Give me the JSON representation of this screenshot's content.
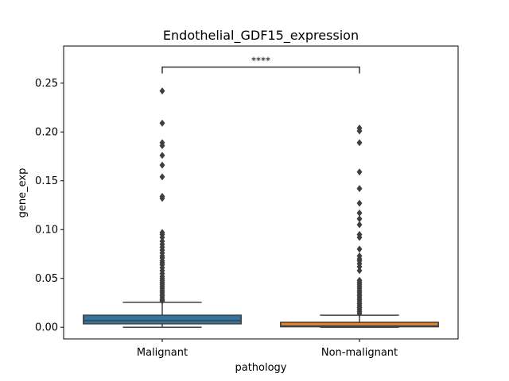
{
  "chart_data": {
    "type": "box",
    "title": "Endothelial_GDF15_expression",
    "xlabel": "pathology",
    "ylabel": "gene_exp",
    "categories": [
      "Malignant",
      "Non-malignant"
    ],
    "ylim": [
      -0.012,
      0.288
    ],
    "yticks": [
      0.0,
      0.05,
      0.1,
      0.15,
      0.2,
      0.25
    ],
    "ytick_labels": [
      "0.00",
      "0.05",
      "0.10",
      "0.15",
      "0.20",
      "0.25"
    ],
    "grid": false,
    "boxes": [
      {
        "name": "Malignant",
        "color": "#3274a1",
        "whisker_low": 0.0,
        "q1": 0.0035,
        "median": 0.0068,
        "q3": 0.0123,
        "whisker_high": 0.0255,
        "outliers": [
          0.242,
          0.209,
          0.189,
          0.186,
          0.176,
          0.166,
          0.154,
          0.134,
          0.132,
          0.097,
          0.095,
          0.092,
          0.088,
          0.085,
          0.082,
          0.079,
          0.076,
          0.073,
          0.071,
          0.068,
          0.066,
          0.064,
          0.061,
          0.058,
          0.055,
          0.052,
          0.05,
          0.048,
          0.046,
          0.044,
          0.042,
          0.04,
          0.038,
          0.036,
          0.034,
          0.032,
          0.03,
          0.028,
          0.027
        ]
      },
      {
        "name": "Non-malignant",
        "color": "#e1812c",
        "whisker_low": 0.0,
        "q1": 0.0005,
        "median": 0.0012,
        "q3": 0.005,
        "whisker_high": 0.0123,
        "outliers": [
          0.204,
          0.201,
          0.189,
          0.159,
          0.142,
          0.127,
          0.117,
          0.111,
          0.105,
          0.095,
          0.092,
          0.08,
          0.073,
          0.07,
          0.068,
          0.065,
          0.062,
          0.058,
          0.048,
          0.046,
          0.044,
          0.042,
          0.04,
          0.038,
          0.036,
          0.034,
          0.032,
          0.03,
          0.028,
          0.026,
          0.024,
          0.022,
          0.02,
          0.018,
          0.016,
          0.014
        ]
      }
    ],
    "annotation": {
      "text": "****",
      "y": 0.2665,
      "from": "Malignant",
      "to": "Non-malignant"
    }
  }
}
